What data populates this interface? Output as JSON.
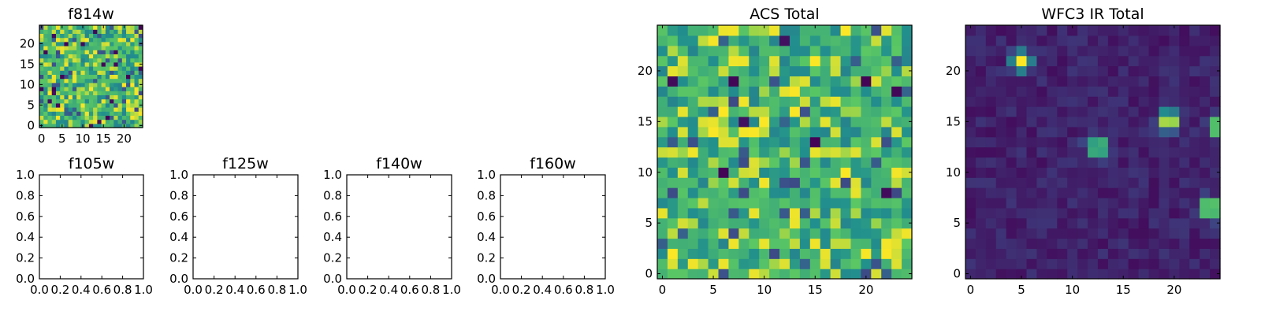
{
  "colormap": [
    "#440154",
    "#3b528b",
    "#21908d",
    "#5dc962",
    "#fde725"
  ],
  "chart_data": [
    {
      "type": "heatmap",
      "title": "f814w",
      "grid": [
        25,
        25
      ],
      "xticks": [
        0,
        5,
        10,
        15,
        20
      ],
      "yticks": [
        0,
        5,
        10,
        15,
        20
      ],
      "pattern": "noise"
    },
    {
      "type": "empty",
      "title": "f105w",
      "xticks": [
        "0.0",
        "0.2",
        "0.4",
        "0.6",
        "0.8",
        "1.0"
      ],
      "yticks": [
        "0.0",
        "0.2",
        "0.4",
        "0.6",
        "0.8",
        "1.0"
      ]
    },
    {
      "type": "empty",
      "title": "f125w",
      "xticks": [
        "0.0",
        "0.2",
        "0.4",
        "0.6",
        "0.8",
        "1.0"
      ],
      "yticks": [
        "0.0",
        "0.2",
        "0.4",
        "0.6",
        "0.8",
        "1.0"
      ]
    },
    {
      "type": "empty",
      "title": "f140w",
      "xticks": [
        "0.0",
        "0.2",
        "0.4",
        "0.6",
        "0.8",
        "1.0"
      ],
      "yticks": [
        "0.0",
        "0.2",
        "0.4",
        "0.6",
        "0.8",
        "1.0"
      ]
    },
    {
      "type": "empty",
      "title": "f160w",
      "xticks": [
        "0.0",
        "0.2",
        "0.4",
        "0.6",
        "0.8",
        "1.0"
      ],
      "yticks": [
        "0.0",
        "0.2",
        "0.4",
        "0.6",
        "0.8",
        "1.0"
      ]
    },
    {
      "type": "heatmap",
      "title": "ACS Total",
      "grid": [
        25,
        25
      ],
      "xticks": [
        0,
        5,
        10,
        15,
        20
      ],
      "yticks": [
        0,
        5,
        10,
        15,
        20
      ],
      "pattern": "noise"
    },
    {
      "type": "heatmap",
      "title": "WFC3 IR Total",
      "grid": [
        25,
        25
      ],
      "xticks": [
        0,
        5,
        10,
        15,
        20
      ],
      "yticks": [
        0,
        5,
        10,
        15,
        20
      ],
      "pattern": "sources",
      "sources": [
        {
          "x": 5,
          "y": 21,
          "peak": 1.0
        },
        {
          "x": 19.5,
          "y": 15.2,
          "peak": 1.0
        },
        {
          "x": 12.5,
          "y": 12.5,
          "peak": 0.9
        },
        {
          "x": 23.5,
          "y": 6.5,
          "peak": 1.0
        },
        {
          "x": 24.5,
          "y": 14.5,
          "peak": 0.95
        }
      ]
    }
  ]
}
